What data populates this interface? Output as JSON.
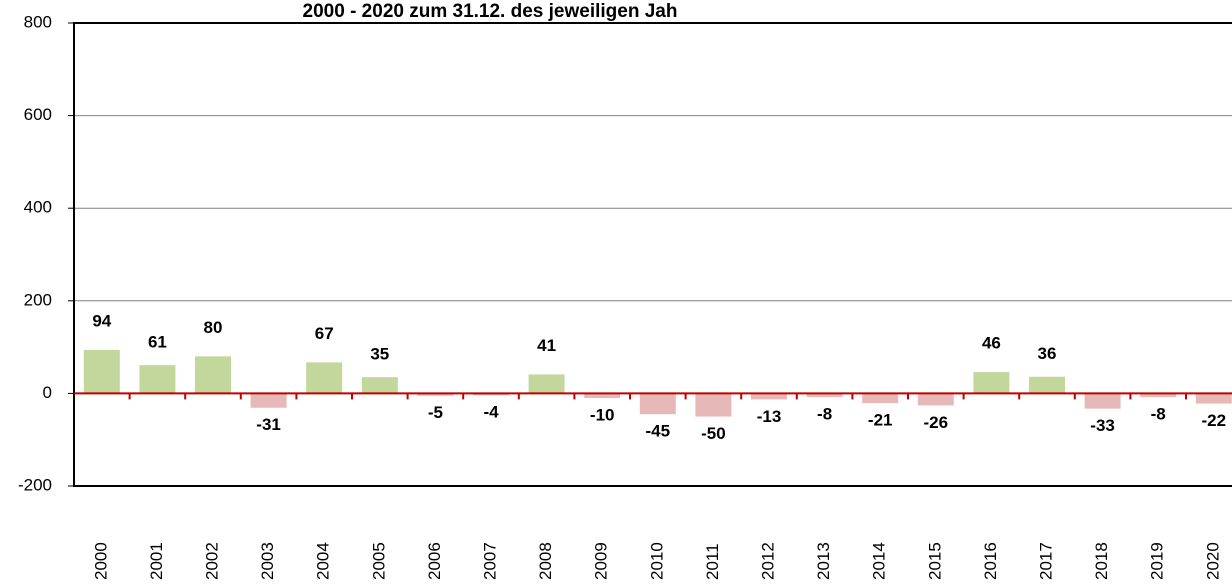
{
  "chart_data": {
    "type": "bar",
    "title": "2000 - 2020 zum 31.12. des jeweiligen Jah",
    "categories": [
      "2000",
      "2001",
      "2002",
      "2003",
      "2004",
      "2005",
      "2006",
      "2007",
      "2008",
      "2009",
      "2010",
      "2011",
      "2012",
      "2013",
      "2014",
      "2015",
      "2016",
      "2017",
      "2018",
      "2019",
      "2020"
    ],
    "values": [
      94,
      61,
      80,
      -31,
      67,
      35,
      -5,
      -4,
      41,
      -10,
      -45,
      -50,
      -13,
      -8,
      -21,
      -26,
      46,
      36,
      -33,
      -8,
      -22
    ],
    "color": "#c3d69b",
    "negative_color": "#e6b9b8",
    "label_color": "#000000",
    "negative_label_color": "#c00000",
    "ylim": [
      -200,
      800
    ],
    "yticks": [
      -200,
      0,
      200,
      400,
      600,
      800
    ],
    "grid": true
  }
}
